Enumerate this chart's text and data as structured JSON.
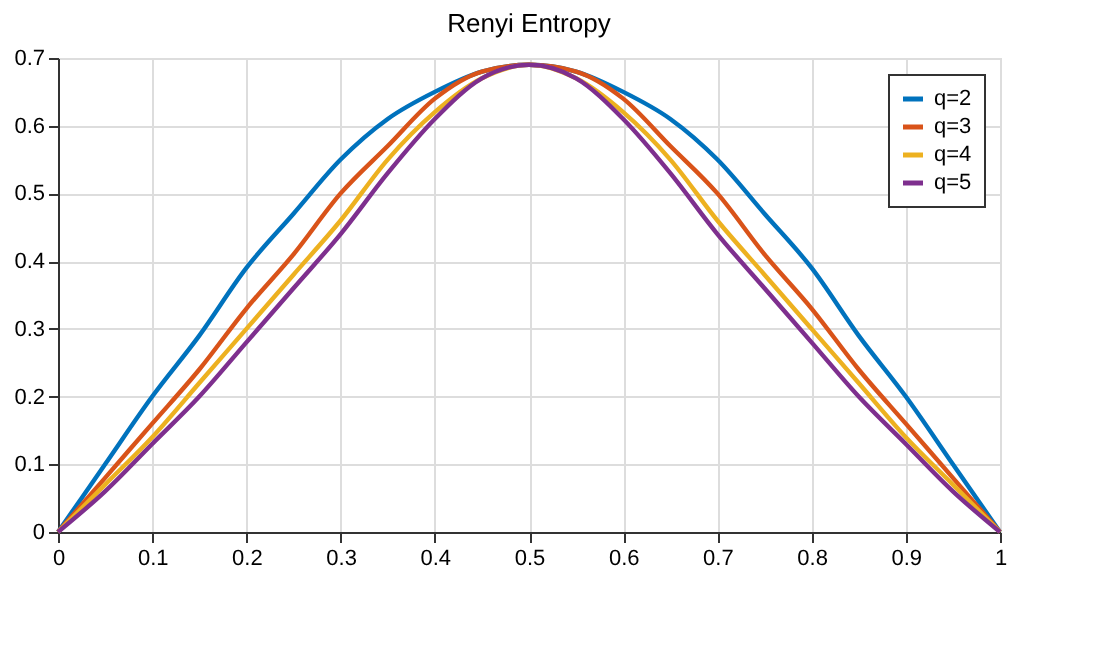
{
  "chart_data": {
    "type": "line",
    "title": "Renyi Entropy",
    "x": [
      0,
      0.05,
      0.1,
      0.15,
      0.2,
      0.25,
      0.3,
      0.35,
      0.4,
      0.45,
      0.5,
      0.55,
      0.6,
      0.65,
      0.7,
      0.75,
      0.8,
      0.85,
      0.9,
      0.95,
      1
    ],
    "series": [
      {
        "name": "q=2",
        "color": "#0072bd",
        "values": [
          0,
          0.1,
          0.2,
          0.29,
          0.39,
          0.47,
          0.55,
          0.61,
          0.65,
          0.68,
          0.69,
          0.68,
          0.65,
          0.61,
          0.55,
          0.47,
          0.39,
          0.29,
          0.2,
          0.1,
          0
        ]
      },
      {
        "name": "q=3",
        "color": "#d95319",
        "values": [
          0,
          0.08,
          0.16,
          0.24,
          0.33,
          0.41,
          0.5,
          0.57,
          0.64,
          0.68,
          0.69,
          0.68,
          0.64,
          0.57,
          0.5,
          0.41,
          0.33,
          0.24,
          0.16,
          0.08,
          0
        ]
      },
      {
        "name": "q=4",
        "color": "#edb120",
        "values": [
          0,
          0.07,
          0.14,
          0.22,
          0.3,
          0.38,
          0.46,
          0.55,
          0.62,
          0.67,
          0.69,
          0.67,
          0.62,
          0.55,
          0.46,
          0.38,
          0.3,
          0.22,
          0.14,
          0.07,
          0
        ]
      },
      {
        "name": "q=5",
        "color": "#7e2f8e",
        "values": [
          0,
          0.06,
          0.13,
          0.2,
          0.28,
          0.36,
          0.44,
          0.53,
          0.61,
          0.67,
          0.69,
          0.67,
          0.61,
          0.53,
          0.44,
          0.36,
          0.28,
          0.2,
          0.13,
          0.06,
          0
        ]
      }
    ],
    "xlim": [
      0,
      1
    ],
    "ylim": [
      0,
      0.7
    ],
    "xticks": [
      0,
      0.1,
      0.2,
      0.3,
      0.4,
      0.5,
      0.6,
      0.7,
      0.8,
      0.9,
      1
    ],
    "yticks": [
      0,
      0.1,
      0.2,
      0.3,
      0.4,
      0.5,
      0.6,
      0.7
    ],
    "grid": true,
    "legend": "top right",
    "marker": "none",
    "line_style": "solid"
  }
}
